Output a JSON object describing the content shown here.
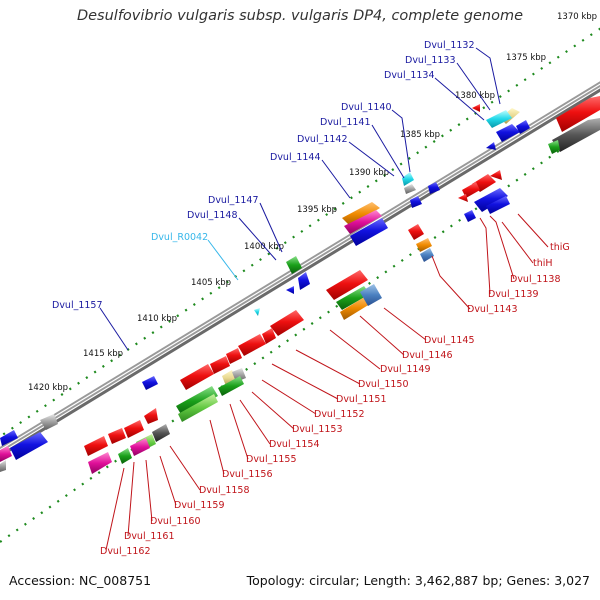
{
  "title": "Desulfovibrio vulgaris subsp. vulgaris DP4, complete genome",
  "footer": {
    "accession": "Accession: NC_008751",
    "topology": "Topology: circular; Length: 3,462,887 bp; Genes: 3,027"
  },
  "ticks": [
    "1370 kbp",
    "1375 kbp",
    "1380 kbp",
    "1385 kbp",
    "1390 kbp",
    "1395 kbp",
    "1400 kbp",
    "1405 kbp",
    "1410 kbp",
    "1415 kbp",
    "1420 kbp"
  ],
  "labels": [
    {
      "text": "Dvul_1132",
      "color": "blue"
    },
    {
      "text": "Dvul_1133",
      "color": "blue"
    },
    {
      "text": "Dvul_1134",
      "color": "blue"
    },
    {
      "text": "Dvul_1140",
      "color": "blue"
    },
    {
      "text": "Dvul_1141",
      "color": "blue"
    },
    {
      "text": "Dvul_1142",
      "color": "blue"
    },
    {
      "text": "Dvul_1144",
      "color": "blue"
    },
    {
      "text": "Dvul_1147",
      "color": "blue"
    },
    {
      "text": "Dvul_1148",
      "color": "blue"
    },
    {
      "text": "Dvul_R0042",
      "color": "cyan"
    },
    {
      "text": "Dvul_1157",
      "color": "blue"
    },
    {
      "text": "thiG",
      "color": "red"
    },
    {
      "text": "thiH",
      "color": "red"
    },
    {
      "text": "Dvul_1138",
      "color": "red"
    },
    {
      "text": "Dvul_1139",
      "color": "red"
    },
    {
      "text": "Dvul_1143",
      "color": "red"
    },
    {
      "text": "Dvul_1145",
      "color": "red"
    },
    {
      "text": "Dvul_1146",
      "color": "red"
    },
    {
      "text": "Dvul_1149",
      "color": "red"
    },
    {
      "text": "Dvul_1150",
      "color": "red"
    },
    {
      "text": "Dvul_1151",
      "color": "red"
    },
    {
      "text": "Dvul_1152",
      "color": "red"
    },
    {
      "text": "Dvul_1153",
      "color": "red"
    },
    {
      "text": "Dvul_1154",
      "color": "red"
    },
    {
      "text": "Dvul_1155",
      "color": "red"
    },
    {
      "text": "Dvul_1156",
      "color": "red"
    },
    {
      "text": "Dvul_1158",
      "color": "red"
    },
    {
      "text": "Dvul_1159",
      "color": "red"
    },
    {
      "text": "Dvul_1160",
      "color": "red"
    },
    {
      "text": "Dvul_1161",
      "color": "red"
    },
    {
      "text": "Dvul_1162",
      "color": "red"
    }
  ],
  "colors": {
    "blue_label": "#1a1aa0",
    "cyan_label": "#37b7ea",
    "red_label": "#c0141a",
    "backbone": "#777777",
    "tick_dots": "#228822",
    "gene_red": "#e01010",
    "gene_blue": "#1010d8",
    "gene_green": "#1aa01a",
    "gene_magenta": "#e0109a",
    "gene_orange": "#f08a00",
    "gene_cyan": "#20d8e8",
    "gene_gray": "#9a9a9a"
  }
}
